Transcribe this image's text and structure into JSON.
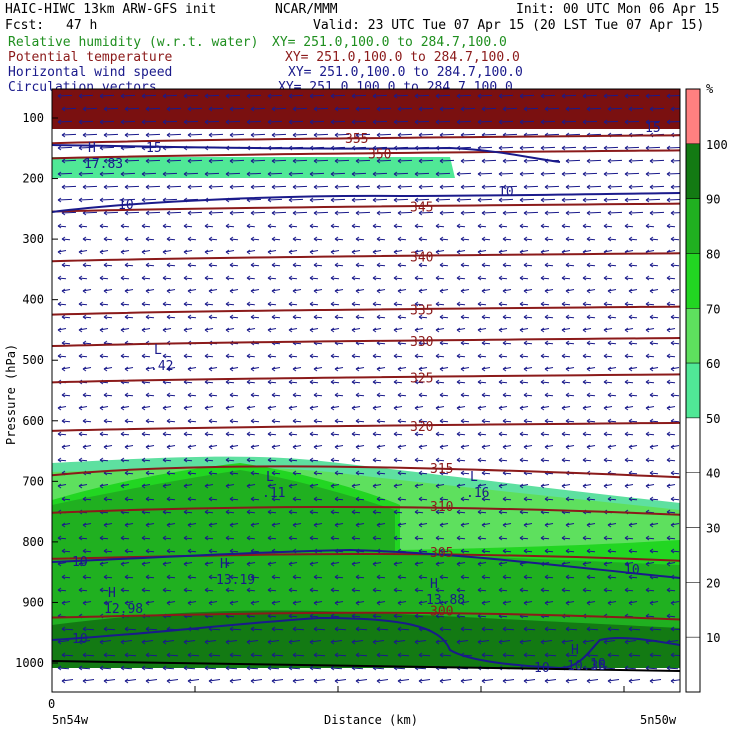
{
  "header": {
    "model": "HAIC-HIWC 13km ARW-GFS init",
    "org": "NCAR/MMM",
    "init": "Init: 00 UTC Mon 06 Apr 15",
    "fcst_label": "Fcst:",
    "fcst_value": "47 h",
    "valid": "Valid: 23 UTC Tue 07 Apr 15 (20 LST Tue 07 Apr 15)",
    "fields": [
      {
        "name": "Relative humidity (w.r.t. water)",
        "xy": "XY= 251.0,100.0 to 284.7,100.0",
        "color": "#1f8f1f"
      },
      {
        "name": "Potential temperature",
        "xy": "XY= 251.0,100.0 to 284.7,100.0",
        "color": "#8b1a1a"
      },
      {
        "name": "Horizontal wind speed",
        "xy": "XY= 251.0,100.0 to 284.7,100.0",
        "color": "#1a1a8b"
      },
      {
        "name": "Circulation vectors",
        "xy": "XY= 251.0,100.0 to 284.7,100.0",
        "color": "#1a1a8b"
      }
    ]
  },
  "chart_data": {
    "type": "heatmap",
    "xlabel": "Distance (km)",
    "ylabel": "Pressure (hPa)",
    "x_start_label": "5n54w",
    "x_end_label": "5n50w",
    "x_zero_label": "0",
    "y_ticks": [
      100,
      200,
      300,
      400,
      500,
      600,
      700,
      800,
      900,
      1000
    ],
    "ylim": [
      1050,
      85
    ],
    "colorbar": {
      "unit": "%",
      "levels": [
        10,
        20,
        30,
        40,
        50,
        60,
        70,
        80,
        90,
        100
      ],
      "colors": [
        "#ffffff",
        "#ffffff",
        "#ffffff",
        "#ffffff",
        "#ffffff",
        "#50e896",
        "#5ee05e",
        "#22d622",
        "#20b020",
        "#137a13",
        "#ff8080"
      ]
    },
    "theta_contours": [
      {
        "label": "355",
        "p": 135
      },
      {
        "label": "350",
        "p": 160
      },
      {
        "label": "345",
        "p": 248
      },
      {
        "label": "340",
        "p": 330
      },
      {
        "label": "335",
        "p": 418
      },
      {
        "label": "330",
        "p": 470
      },
      {
        "label": "325",
        "p": 530
      },
      {
        "label": "320",
        "p": 610
      },
      {
        "label": "315",
        "p": 680
      },
      {
        "label": "310",
        "p": 742
      },
      {
        "label": "305",
        "p": 818
      },
      {
        "label": "300",
        "p": 915
      }
    ],
    "wind_labels": [
      "15",
      "15",
      "10",
      "10",
      "10",
      "10",
      "10",
      "10",
      "10"
    ],
    "annotations": [
      {
        "label": "H",
        "value": "17.83"
      },
      {
        "label": "L",
        "value": ".42"
      },
      {
        "label": "L",
        "value": ".11"
      },
      {
        "label": "L",
        "value": ".16"
      },
      {
        "label": "H",
        "value": "13.19"
      },
      {
        "label": "H",
        "value": "12.98"
      },
      {
        "label": "H",
        "value": "13.88"
      },
      {
        "label": "H",
        "value": "10.38"
      }
    ]
  }
}
